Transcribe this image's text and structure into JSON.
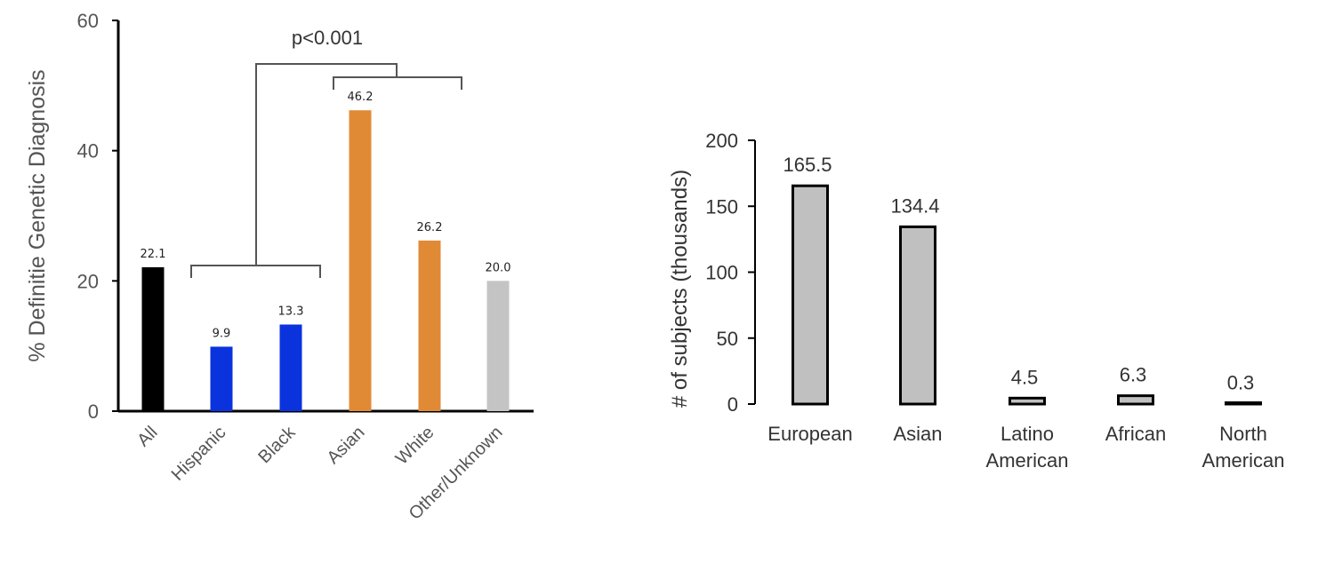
{
  "chart_data": [
    {
      "type": "bar",
      "title": "",
      "xlabel": "",
      "ylabel": "% Definitie Genetic Diagnosis",
      "ylim": [
        0,
        60
      ],
      "yticks": [
        0,
        20,
        40,
        60
      ],
      "categories": [
        "All",
        "Hispanic",
        "Black",
        "Asian",
        "White",
        "Other/Unknown"
      ],
      "values": [
        22.1,
        9.9,
        13.3,
        46.2,
        26.2,
        20.0
      ],
      "data_labels": [
        "22.1",
        "9.9",
        "13.3",
        "46.2",
        "26.2",
        "20.0"
      ],
      "colors": [
        "#000000",
        "#0a33dd",
        "#0a33dd",
        "#e08a35",
        "#e08a35",
        "#c4c4c4"
      ],
      "annotation": {
        "text": "p<0.001",
        "left_group": [
          "Hispanic",
          "Black"
        ],
        "right_group": [
          "Asian",
          "White",
          "Other/Unknown"
        ]
      },
      "grid": false
    },
    {
      "type": "bar",
      "title": "",
      "xlabel": "",
      "ylabel": "# of subjects (thousands)",
      "ylim": [
        0,
        200
      ],
      "yticks": [
        0,
        50,
        100,
        150,
        200
      ],
      "categories": [
        "European",
        "Asian",
        "Latino\nAmerican",
        "African",
        "North\nAmerican"
      ],
      "values": [
        165.5,
        134.4,
        4.5,
        6.3,
        0.3
      ],
      "data_labels": [
        "165.5",
        "134.4",
        "4.5",
        "6.3",
        "0.3"
      ],
      "bar_fill": "#c0c0c0",
      "bar_edge": "#000000",
      "grid": false
    }
  ]
}
